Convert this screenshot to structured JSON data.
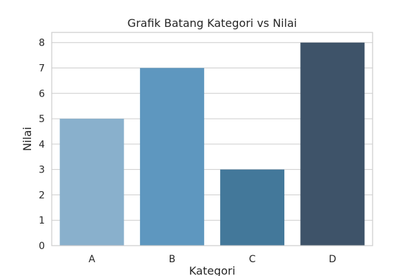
{
  "chart_data": {
    "type": "bar",
    "title": "Grafik Batang Kategori vs Nilai",
    "xlabel": "Kategori",
    "ylabel": "Nilai",
    "categories": [
      "A",
      "B",
      "C",
      "D"
    ],
    "values": [
      5,
      7,
      3,
      8
    ],
    "ylim": [
      0,
      8.4
    ],
    "yticks": [
      0,
      1,
      2,
      3,
      4,
      5,
      6,
      7,
      8
    ],
    "grid": "horizontal",
    "colors": [
      "#89B0CC",
      "#5E97BF",
      "#43789A",
      "#3E5369"
    ],
    "background": "#ffffff",
    "grid_color": "#cccccc"
  }
}
